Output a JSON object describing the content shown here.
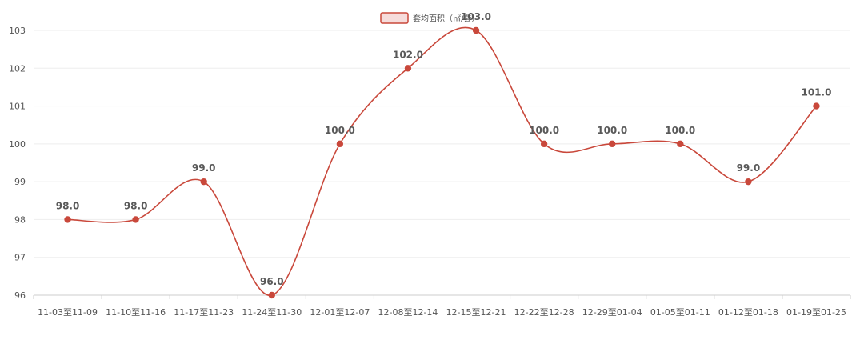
{
  "chart_data": {
    "type": "line",
    "categories": [
      "11-03至11-09",
      "11-10至11-16",
      "11-17至11-23",
      "11-24至11-30",
      "12-01至12-07",
      "12-08至12-14",
      "12-15至12-21",
      "12-22至12-28",
      "12-29至01-04",
      "01-05至01-11",
      "01-12至01-18",
      "01-19至01-25"
    ],
    "series": [
      {
        "name": "套均面积（㎡/套）",
        "values": [
          98.0,
          98.0,
          99.0,
          96.0,
          100.0,
          102.0,
          103.0,
          100.0,
          100.0,
          100.0,
          99.0,
          101.0
        ],
        "color": "#c9483b",
        "data_labels": [
          "98.0",
          "98.0",
          "99.0",
          "96.0",
          "100.0",
          "102.0",
          "103.0",
          "100.0",
          "100.0",
          "100.0",
          "99.0",
          "101.0"
        ]
      }
    ],
    "y_ticks": [
      "96",
      "97",
      "98",
      "99",
      "100",
      "101",
      "102",
      "103"
    ],
    "ylim": [
      96,
      103
    ],
    "grid": true,
    "legend_position": "top-center",
    "smooth": true,
    "colors": {
      "line": "#c9483b",
      "legend_fill": "#f6dcdb",
      "grid": "#eeeeee",
      "axis": "#cccccc"
    }
  }
}
